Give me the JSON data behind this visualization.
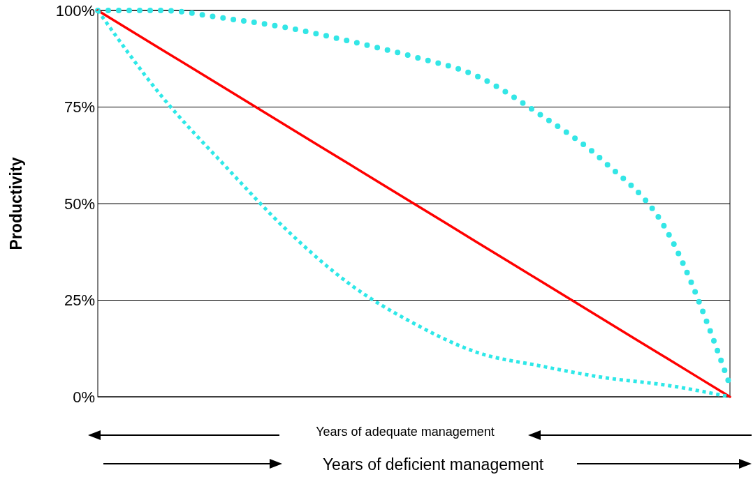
{
  "chart_data": {
    "type": "line",
    "ylabel": "Productivity",
    "categories": [
      null,
      null,
      null,
      null,
      null,
      null,
      null,
      null,
      null,
      null,
      null
    ],
    "series": [
      {
        "color": "#33e6e6",
        "line_style": "dotted",
        "values": [
          100,
          100,
          98,
          95.5,
          92,
          88,
          83,
          73,
          61,
          43,
          3
        ]
      },
      {
        "color": "#ff0000",
        "line_style": "solid",
        "values": [
          100,
          90,
          80,
          70,
          60,
          50,
          40,
          30,
          20,
          10,
          0
        ]
      },
      {
        "color": "#2ee8e8",
        "line_style": "dotted",
        "values": [
          100,
          78,
          60,
          43,
          29,
          19,
          11.5,
          8,
          5,
          3,
          0
        ]
      }
    ],
    "ylim": [
      0,
      100
    ],
    "yticks": [
      {
        "value": 0,
        "label": "0%"
      },
      {
        "value": 25,
        "label": "25%"
      },
      {
        "value": 50,
        "label": "50%"
      },
      {
        "value": 75,
        "label": "75%"
      },
      {
        "value": 100,
        "label": "100%"
      }
    ],
    "grid": "y",
    "annotations": [
      "Years of adequate management",
      "Years of deficient management"
    ]
  }
}
